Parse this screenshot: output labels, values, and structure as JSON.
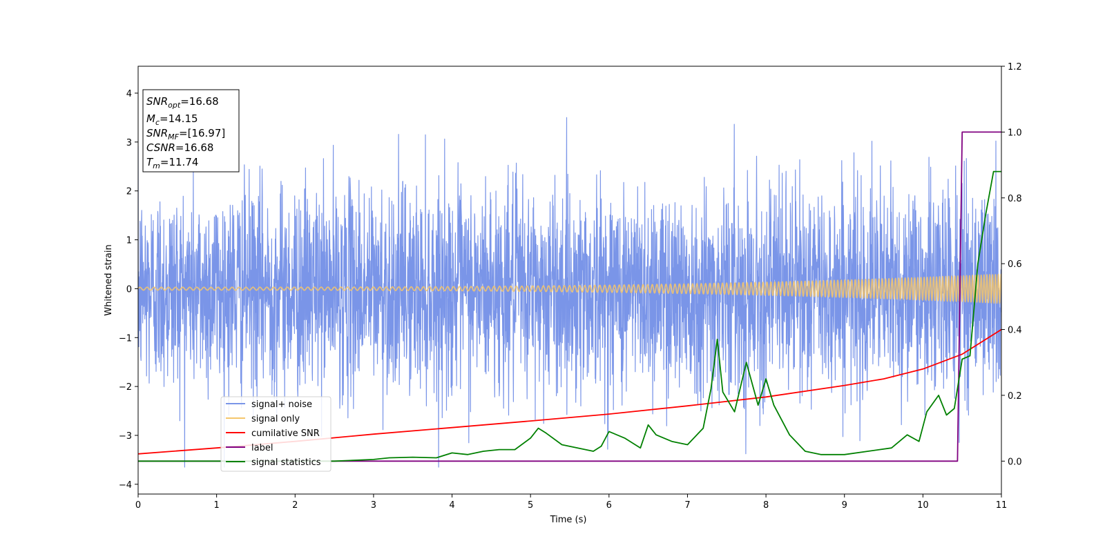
{
  "chart_data": {
    "type": "line",
    "xlabel": "Time (s)",
    "ylabel": "Whitened strain",
    "xlim": [
      0,
      11
    ],
    "ylim": [
      -4.2,
      4.55
    ],
    "y2lim": [
      -0.1,
      1.2
    ],
    "xticks": [
      0,
      1,
      2,
      3,
      4,
      5,
      6,
      7,
      8,
      9,
      10,
      11
    ],
    "yticks": [
      -4,
      -3,
      -2,
      -1,
      0,
      1,
      2,
      3,
      4
    ],
    "y2ticks": [
      "0.0",
      "0.2",
      "0.4",
      "0.6",
      "0.8",
      "1.0",
      "1.2"
    ],
    "legend_position": "lower-left",
    "annotation": {
      "lines": [
        {
          "main": "SNR",
          "sub": "opt",
          "rest": "=16.68"
        },
        {
          "main": "M",
          "sub": "c",
          "rest": "=14.15"
        },
        {
          "main": "SNR",
          "sub": "MF",
          "rest": "=[16.97]"
        },
        {
          "main": "CSNR",
          "sub": "",
          "rest": "=16.68"
        },
        {
          "main": "T",
          "sub": "m",
          "rest": "=11.74"
        }
      ]
    },
    "series": [
      {
        "name": "signal+ noise",
        "axis": "left",
        "color": "#7a95e8",
        "kind": "noise",
        "envelope_std": 1.0,
        "peak_values_approx": [
          3.5,
          -3.65
        ]
      },
      {
        "name": "signal only",
        "axis": "left",
        "color": "#f5c66b",
        "kind": "chirp",
        "amplitude_start": 0.03,
        "amplitude_end": 0.3,
        "frequency_start_hz": 11,
        "frequency_end_hz": 28
      },
      {
        "name": "cumilative SNR",
        "axis": "right",
        "color": "#ff0000",
        "x": [
          0,
          1,
          2,
          3,
          4,
          5,
          6,
          7,
          8,
          9,
          9.5,
          10,
          10.5,
          11
        ],
        "y": [
          0.022,
          0.04,
          0.06,
          0.082,
          0.102,
          0.122,
          0.143,
          0.168,
          0.195,
          0.23,
          0.25,
          0.28,
          0.325,
          0.4
        ]
      },
      {
        "name": "label",
        "axis": "right",
        "color": "#800080",
        "x": [
          0,
          10.44,
          10.5,
          11
        ],
        "y": [
          0.0,
          0.0,
          1.0,
          1.0
        ]
      },
      {
        "name": "signal statistics",
        "axis": "right",
        "color": "#008000",
        "x": [
          0,
          0.5,
          1,
          1.5,
          2,
          2.5,
          3,
          3.2,
          3.5,
          3.8,
          4,
          4.2,
          4.4,
          4.6,
          4.8,
          5,
          5.1,
          5.2,
          5.4,
          5.6,
          5.8,
          5.9,
          6,
          6.2,
          6.4,
          6.5,
          6.6,
          6.8,
          7.0,
          7.2,
          7.3,
          7.38,
          7.45,
          7.6,
          7.75,
          7.9,
          8.0,
          8.1,
          8.3,
          8.5,
          8.7,
          9.0,
          9.3,
          9.6,
          9.8,
          9.95,
          10.05,
          10.2,
          10.3,
          10.4,
          10.5,
          10.6,
          10.7,
          10.8,
          10.9,
          11
        ],
        "y": [
          0.0,
          0.0,
          0.0,
          0.0,
          0.0,
          0.0,
          0.005,
          0.01,
          0.012,
          0.01,
          0.025,
          0.02,
          0.03,
          0.035,
          0.035,
          0.07,
          0.1,
          0.085,
          0.05,
          0.04,
          0.03,
          0.045,
          0.09,
          0.07,
          0.04,
          0.11,
          0.08,
          0.06,
          0.05,
          0.1,
          0.22,
          0.37,
          0.21,
          0.15,
          0.3,
          0.17,
          0.25,
          0.17,
          0.08,
          0.03,
          0.02,
          0.02,
          0.03,
          0.04,
          0.08,
          0.06,
          0.15,
          0.2,
          0.14,
          0.16,
          0.31,
          0.32,
          0.6,
          0.75,
          0.88,
          0.88
        ]
      }
    ]
  }
}
